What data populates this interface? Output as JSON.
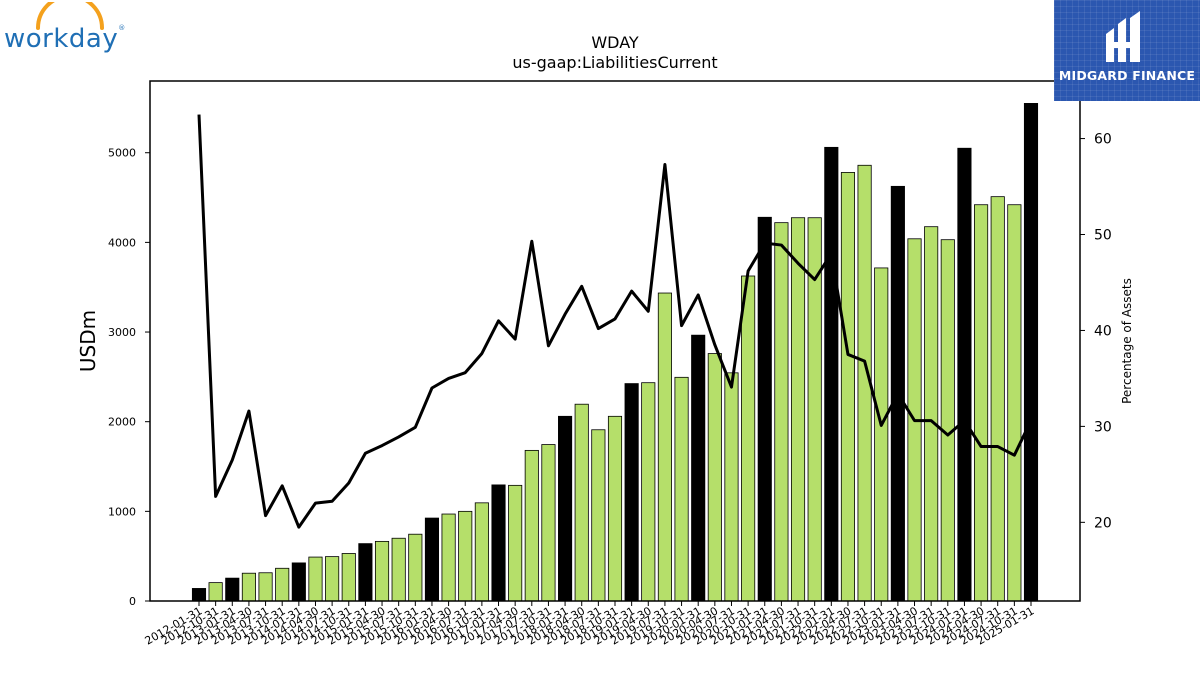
{
  "logo": {
    "text": "workday",
    "reg": "®"
  },
  "brand": {
    "name": "MIDGARD FINANCE",
    "color": "#2b57b0"
  },
  "chart_data": {
    "type": "bar",
    "title": "WDAY",
    "subtitle": "us-gaap:LiabilitiesCurrent",
    "ylabel": "USDm",
    "y2label": "Percentage of Assets",
    "ylim": [
      0,
      5800
    ],
    "y2lim": [
      11.8,
      66
    ],
    "yticks": [
      0,
      1000,
      2000,
      3000,
      4000,
      5000
    ],
    "y2ticks": [
      20,
      30,
      40,
      50,
      60
    ],
    "categories": [
      "2012-01-31",
      "2012-10-31",
      "2013-01-31",
      "2013-04-30",
      "2013-07-31",
      "2013-10-31",
      "2014-01-31",
      "2014-04-30",
      "2014-07-31",
      "2014-10-31",
      "2015-01-31",
      "2015-04-30",
      "2015-07-31",
      "2015-10-31",
      "2016-01-31",
      "2016-04-30",
      "2016-07-31",
      "2016-10-31",
      "2017-01-31",
      "2017-04-30",
      "2017-07-31",
      "2017-10-31",
      "2018-01-31",
      "2018-04-30",
      "2018-07-31",
      "2018-10-31",
      "2019-01-31",
      "2019-04-30",
      "2019-07-31",
      "2019-10-31",
      "2020-01-31",
      "2020-04-30",
      "2020-07-31",
      "2020-10-31",
      "2021-01-31",
      "2021-04-30",
      "2021-07-31",
      "2021-10-31",
      "2022-01-31",
      "2022-04-30",
      "2022-07-31",
      "2022-10-31",
      "2023-01-31",
      "2023-04-30",
      "2023-07-31",
      "2023-10-31",
      "2024-01-31",
      "2024-04-30",
      "2024-07-31",
      "2024-10-31",
      "2025-01-31"
    ],
    "values": [
      140,
      205,
      255,
      310,
      315,
      365,
      425,
      490,
      495,
      530,
      640,
      665,
      700,
      745,
      925,
      970,
      1000,
      1095,
      1295,
      1290,
      1680,
      1745,
      2060,
      2195,
      1910,
      2060,
      2425,
      2435,
      3435,
      2495,
      2965,
      2760,
      2545,
      3625,
      4280,
      4220,
      4275,
      4275,
      5060,
      4780,
      4860,
      3715,
      4625,
      4040,
      4175,
      4030,
      5050,
      4420,
      4510,
      4420,
      5550
    ],
    "annual_flags": [
      1,
      0,
      1,
      0,
      0,
      0,
      1,
      0,
      0,
      0,
      1,
      0,
      0,
      0,
      1,
      0,
      0,
      0,
      1,
      0,
      0,
      0,
      1,
      0,
      0,
      0,
      1,
      0,
      0,
      0,
      1,
      0,
      0,
      0,
      1,
      0,
      0,
      0,
      1,
      0,
      0,
      0,
      1,
      0,
      0,
      0,
      1,
      0,
      0,
      0,
      1
    ],
    "pct_of_assets": [
      62.5,
      22.7,
      26.5,
      31.6,
      20.7,
      23.8,
      19.5,
      22,
      22.2,
      24.1,
      27.2,
      28,
      28.9,
      29.9,
      34,
      35,
      35.6,
      37.6,
      41,
      39.1,
      49.3,
      38.4,
      41.7,
      44.6,
      40.2,
      41.2,
      44.1,
      42,
      57.3,
      40.5,
      43.7,
      38.5,
      34.1,
      46.2,
      49.1,
      48.9,
      47,
      45.3,
      48,
      37.5,
      36.8,
      30.1,
      33.4,
      30.6,
      30.6,
      29.1,
      30.6,
      27.9,
      27.9,
      27,
      30.6
    ],
    "bar_colors": {
      "annual": "#000000",
      "quarterly": "#b5df6a"
    },
    "line_color": "#000000",
    "legend": "none",
    "grid": false
  }
}
